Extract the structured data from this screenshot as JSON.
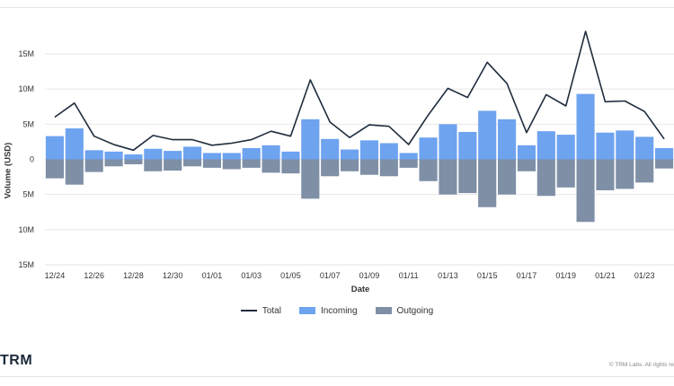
{
  "chart_data": {
    "type": "bar",
    "xlabel": "Date",
    "ylabel": "Volume (USD)",
    "ylim": [
      -15,
      15
    ],
    "y_unit": "M",
    "y_tick_values": [
      15,
      10,
      5,
      0,
      -5,
      -10,
      -15
    ],
    "y_tick_labels": [
      "15M",
      "10M",
      "5M",
      "0",
      "5M",
      "10M",
      "15M"
    ],
    "x_tick_labels": [
      "12/24",
      "12/26",
      "12/28",
      "12/30",
      "01/01",
      "01/03",
      "01/05",
      "01/07",
      "01/09",
      "01/11",
      "01/13",
      "01/15",
      "01/17",
      "01/19",
      "01/21",
      "01/23"
    ],
    "x_tick_every": 2,
    "grid": true,
    "legend_position": "bottom",
    "series": [
      {
        "name": "Total",
        "type": "line",
        "color": "#1f2d3d",
        "values": [
          6.0,
          8.0,
          3.3,
          2.1,
          1.3,
          3.4,
          2.8,
          2.8,
          2.0,
          2.3,
          2.8,
          4.0,
          3.3,
          11.3,
          5.3,
          3.1,
          4.9,
          4.7,
          2.1,
          6.3,
          10.1,
          8.8,
          13.8,
          10.8,
          3.8,
          9.2,
          7.6,
          18.2,
          8.2,
          8.3,
          6.8,
          2.9
        ]
      },
      {
        "name": "Incoming",
        "type": "bar",
        "color": "#6ea3f0",
        "values": [
          3.3,
          4.4,
          1.3,
          1.1,
          0.7,
          1.5,
          1.2,
          1.8,
          0.9,
          0.9,
          1.6,
          2.0,
          1.1,
          5.7,
          2.9,
          1.4,
          2.7,
          2.3,
          0.9,
          3.1,
          5.0,
          3.9,
          6.9,
          5.7,
          2.0,
          4.0,
          3.5,
          9.3,
          3.8,
          4.1,
          3.2,
          1.6
        ]
      },
      {
        "name": "Outgoing",
        "type": "bar",
        "color": "#7e8fa6",
        "values": [
          -2.7,
          -3.6,
          -1.8,
          -1.0,
          -0.7,
          -1.7,
          -1.6,
          -1.0,
          -1.2,
          -1.4,
          -1.2,
          -1.9,
          -2.0,
          -5.6,
          -2.4,
          -1.7,
          -2.2,
          -2.4,
          -1.2,
          -3.1,
          -5.0,
          -4.8,
          -6.8,
          -5.0,
          -1.7,
          -5.2,
          -4.0,
          -8.9,
          -4.4,
          -4.2,
          -3.3,
          -1.3
        ]
      }
    ]
  },
  "footer": {
    "logo": "TRM",
    "copyright": "© TRM Labs. All rights re"
  }
}
